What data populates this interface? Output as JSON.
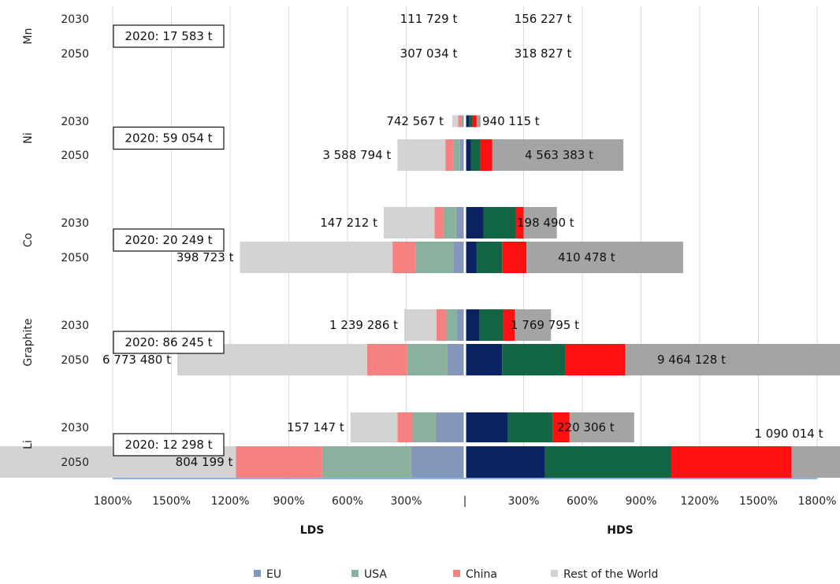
{
  "chart_data": {
    "type": "bar",
    "orientation": "horizontal-butterfly",
    "left_axis_title": "LDS",
    "right_axis_title": "HDS",
    "xlim": [
      -1800,
      1800
    ],
    "x_unit": "%",
    "x_ticks": [
      "1800%",
      "1500%",
      "1200%",
      "900%",
      "600%",
      "300%",
      "|",
      "300%",
      "600%",
      "900%",
      "1200%",
      "1500%",
      "1800%"
    ],
    "grid": true,
    "legend_position": "bottom",
    "legend": [
      {
        "name": "EU",
        "color": "#8497b9"
      },
      {
        "name": "USA",
        "color": "#8ab09e"
      },
      {
        "name": "China",
        "color": "#f58181"
      },
      {
        "name": "Rest of the World",
        "color": "#d3d3d3"
      }
    ],
    "colors": {
      "lds": {
        "EU": "#8497b9",
        "USA": "#8ab09e",
        "China": "#f58181",
        "Rest of the World": "#d3d3d3"
      },
      "hds": {
        "EU": "#0b2360",
        "USA": "#136644",
        "China": "#fe1010",
        "Rest of the World": "#a4a4a4"
      }
    },
    "segment_order": [
      "EU",
      "USA",
      "China",
      "Rest of the World"
    ],
    "materials": [
      {
        "name": "Mn",
        "baseline": "2020:   17 583 t",
        "rows": [
          {
            "year": "2030",
            "lds_label": "111 729 t",
            "hds_label": "156 227 t",
            "lds": [
              0,
              0,
              0,
              0
            ],
            "hds": [
              0,
              0,
              0,
              0
            ]
          },
          {
            "year": "2050",
            "lds_label": "307 034 t",
            "hds_label": "318 827 t",
            "lds": [
              0,
              0,
              0,
              0
            ],
            "hds": [
              0,
              0,
              0,
              0
            ]
          }
        ]
      },
      {
        "name": "Ni",
        "baseline": "2020:   59 054 t",
        "rows": [
          {
            "year": "2030",
            "lds_label": "742 567 t",
            "hds_label": "940 115 t",
            "lds": [
              10,
              10,
              15,
              30
            ],
            "hds": [
              20,
              20,
              20,
              20
            ]
          },
          {
            "year": "2050",
            "lds_label": "3 588 794 t",
            "hds_label": "4 563 383 t",
            "lds": [
              25,
              35,
              40,
              245
            ],
            "hds": [
              30,
              50,
              60,
              670
            ]
          }
        ]
      },
      {
        "name": "Co",
        "baseline": "2020:   20 249 t",
        "rows": [
          {
            "year": "2030",
            "lds_label": "147 212 t",
            "hds_label": "198 490 t",
            "lds": [
              45,
              65,
              45,
              260
            ],
            "hds": [
              95,
              165,
              40,
              170
            ]
          },
          {
            "year": "2050",
            "lds_label": "398 723 t",
            "hds_label": "410 478 t",
            "lds": [
              60,
              190,
              120,
              780
            ],
            "hds": [
              60,
              130,
              125,
              800
            ]
          }
        ]
      },
      {
        "name": "Graphite",
        "baseline": "2020:   86 245 t",
        "rows": [
          {
            "year": "2030",
            "lds_label": "1 239 286 t",
            "hds_label": "1 769 795 t",
            "lds": [
              40,
              55,
              50,
              165
            ],
            "hds": [
              75,
              120,
              60,
              185
            ]
          },
          {
            "year": "2050",
            "lds_label": "6 773 480 t",
            "hds_label": "9 464 128 t",
            "lds": [
              90,
              205,
              205,
              970
            ],
            "hds": [
              190,
              325,
              305,
              1365
            ]
          }
        ]
      },
      {
        "name": "Li",
        "baseline": "2020:   12 298 t",
        "rows": [
          {
            "year": "2030",
            "lds_label": "157 147 t",
            "hds_label": "220 306 t",
            "lds": [
              150,
              120,
              75,
              240
            ],
            "hds": [
              220,
              230,
              85,
              330
            ]
          },
          {
            "year": "2050",
            "lds_label": "804 199 t",
            "hds_label": "1 090 014 t",
            "lds": [
              275,
              455,
              440,
              2125
            ],
            "hds": [
              410,
              645,
              615,
              2510
            ]
          }
        ]
      }
    ]
  }
}
